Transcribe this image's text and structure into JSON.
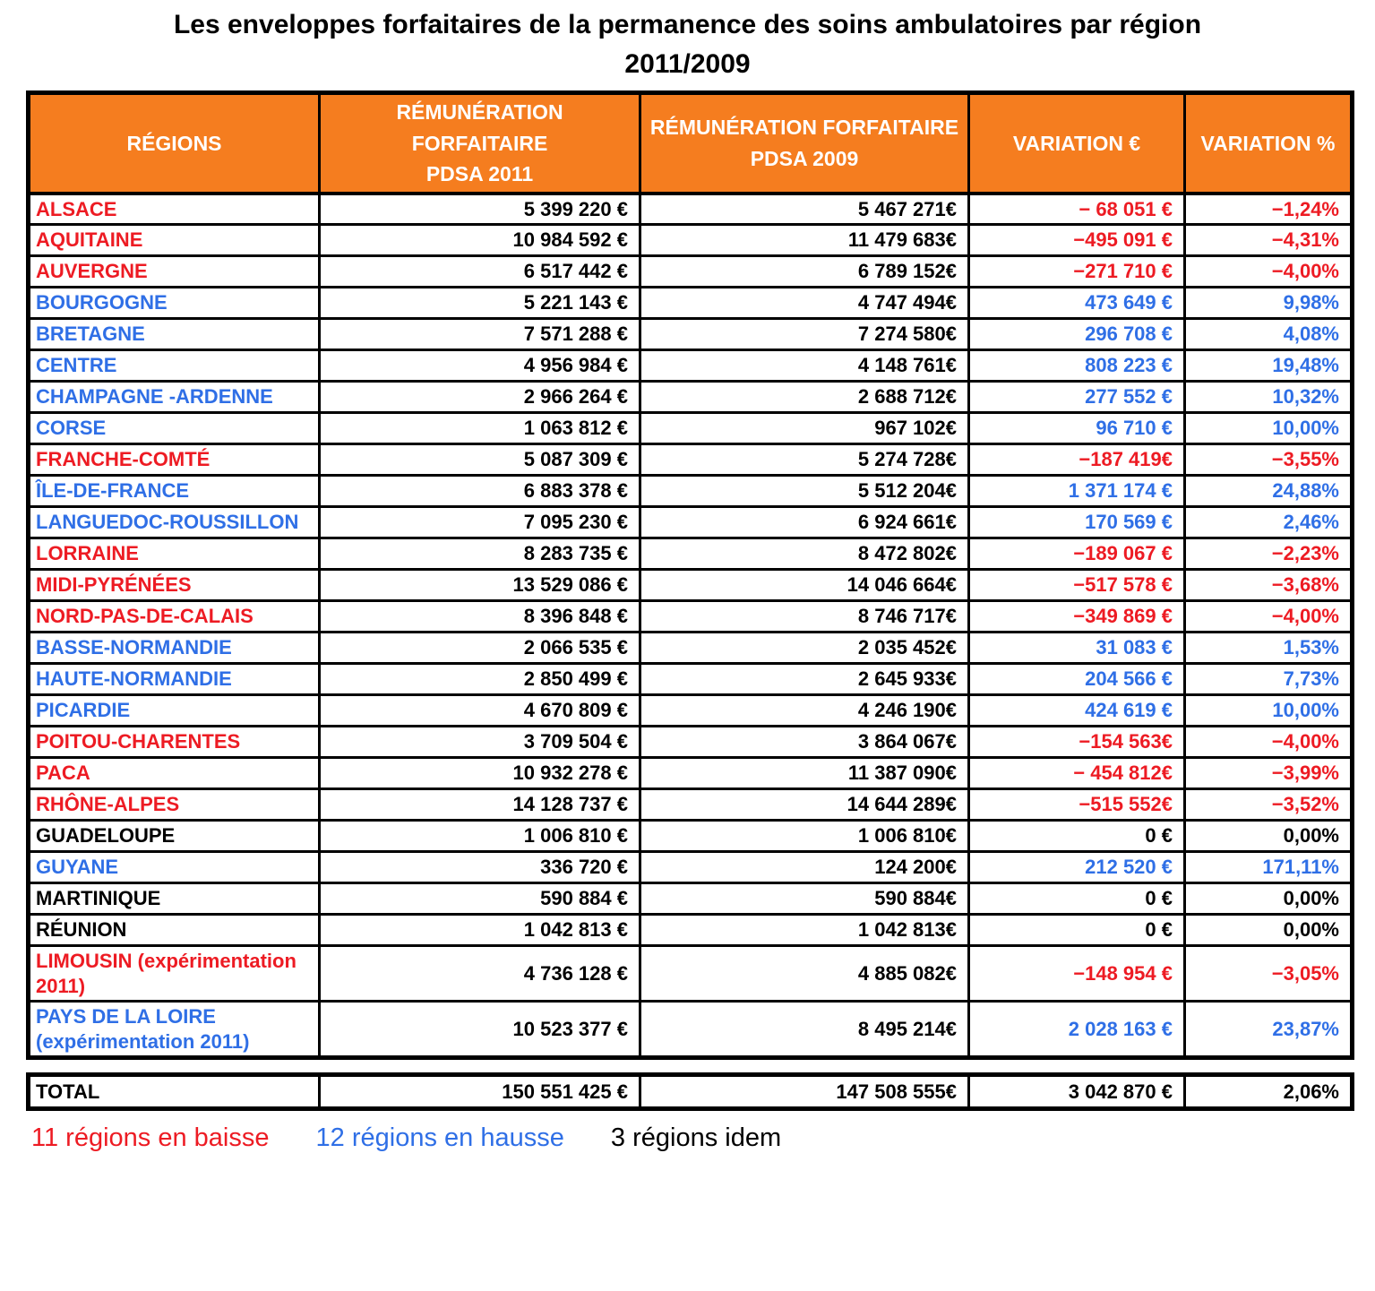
{
  "title": {
    "line1": "Les enveloppes forfaitaires de la permanence des soins ambulatoires par région",
    "line2": "2011/2009"
  },
  "colors": {
    "header_bg": "#F57D1F",
    "header_text": "#FFFFFF",
    "down": "#ED1B23",
    "up": "#2F6FE6",
    "flat": "#000000",
    "border": "#000000"
  },
  "table": {
    "columns": [
      {
        "line1": "RÉGIONS",
        "line2": ""
      },
      {
        "line1": "RÉMUNÉRATION FORFAITAIRE",
        "line2": "PDSA 2011"
      },
      {
        "line1": "RÉMUNÉRATION FORFAITAIRE",
        "line2": "PDSA 2009"
      },
      {
        "line1": "VARIATION €",
        "line2": ""
      },
      {
        "line1": "VARIATION %",
        "line2": ""
      }
    ],
    "rows": [
      {
        "region": "ALSACE",
        "pdsa2011": "5 399 220 €",
        "pdsa2009": "5 467 271€",
        "variation_eur": "− 68 051 €",
        "variation_pct": "−1,24%",
        "trend": "down"
      },
      {
        "region": "AQUITAINE",
        "pdsa2011": "10 984 592 €",
        "pdsa2009": "11 479 683€",
        "variation_eur": "−495 091 €",
        "variation_pct": "−4,31%",
        "trend": "down"
      },
      {
        "region": "AUVERGNE",
        "pdsa2011": "6 517 442 €",
        "pdsa2009": "6 789 152€",
        "variation_eur": "−271 710 €",
        "variation_pct": "−4,00%",
        "trend": "down"
      },
      {
        "region": "BOURGOGNE",
        "pdsa2011": "5 221 143 €",
        "pdsa2009": "4 747 494€",
        "variation_eur": "473 649 €",
        "variation_pct": "9,98%",
        "trend": "up"
      },
      {
        "region": "BRETAGNE",
        "pdsa2011": "7 571 288 €",
        "pdsa2009": "7 274 580€",
        "variation_eur": "296 708 €",
        "variation_pct": "4,08%",
        "trend": "up"
      },
      {
        "region": "CENTRE",
        "pdsa2011": "4 956 984 €",
        "pdsa2009": "4 148 761€",
        "variation_eur": "808 223 €",
        "variation_pct": "19,48%",
        "trend": "up"
      },
      {
        "region": "CHAMPAGNE -ARDENNE",
        "pdsa2011": "2 966 264 €",
        "pdsa2009": "2 688 712€",
        "variation_eur": "277 552 €",
        "variation_pct": "10,32%",
        "trend": "up"
      },
      {
        "region": "CORSE",
        "pdsa2011": "1 063 812 €",
        "pdsa2009": "967 102€",
        "variation_eur": "96 710 €",
        "variation_pct": "10,00%",
        "trend": "up"
      },
      {
        "region": "FRANCHE-COMTÉ",
        "pdsa2011": "5 087 309 €",
        "pdsa2009": "5 274 728€",
        "variation_eur": "−187 419€",
        "variation_pct": "−3,55%",
        "trend": "down"
      },
      {
        "region": "ÎLE-DE-FRANCE",
        "pdsa2011": "6 883 378 €",
        "pdsa2009": "5 512 204€",
        "variation_eur": "1 371 174 €",
        "variation_pct": "24,88%",
        "trend": "up"
      },
      {
        "region": "LANGUEDOC-ROUSSILLON",
        "pdsa2011": "7 095 230 €",
        "pdsa2009": "6 924 661€",
        "variation_eur": "170 569 €",
        "variation_pct": "2,46%",
        "trend": "up"
      },
      {
        "region": "LORRAINE",
        "pdsa2011": "8 283 735 €",
        "pdsa2009": "8 472 802€",
        "variation_eur": "−189 067 €",
        "variation_pct": "−2,23%",
        "trend": "down"
      },
      {
        "region": "MIDI-PYRÉNÉES",
        "pdsa2011": "13 529 086 €",
        "pdsa2009": "14 046 664€",
        "variation_eur": "−517 578 €",
        "variation_pct": "−3,68%",
        "trend": "down"
      },
      {
        "region": "NORD-PAS-DE-CALAIS",
        "pdsa2011": "8 396 848 €",
        "pdsa2009": "8 746 717€",
        "variation_eur": "−349 869 €",
        "variation_pct": "−4,00%",
        "trend": "down"
      },
      {
        "region": "BASSE-NORMANDIE",
        "pdsa2011": "2 066 535 €",
        "pdsa2009": "2 035 452€",
        "variation_eur": "31 083 €",
        "variation_pct": "1,53%",
        "trend": "up"
      },
      {
        "region": "HAUTE-NORMANDIE",
        "pdsa2011": "2 850 499 €",
        "pdsa2009": "2 645 933€",
        "variation_eur": "204 566 €",
        "variation_pct": "7,73%",
        "trend": "up"
      },
      {
        "region": "PICARDIE",
        "pdsa2011": "4 670 809 €",
        "pdsa2009": "4 246 190€",
        "variation_eur": "424 619 €",
        "variation_pct": "10,00%",
        "trend": "up"
      },
      {
        "region": "POITOU-CHARENTES",
        "pdsa2011": "3 709 504 €",
        "pdsa2009": "3 864 067€",
        "variation_eur": "−154 563€",
        "variation_pct": "−4,00%",
        "trend": "down"
      },
      {
        "region": "PACA",
        "pdsa2011": "10 932 278 €",
        "pdsa2009": "11 387 090€",
        "variation_eur": "− 454 812€",
        "variation_pct": "−3,99%",
        "trend": "down"
      },
      {
        "region": "RHÔNE-ALPES",
        "pdsa2011": "14 128 737 €",
        "pdsa2009": "14 644 289€",
        "variation_eur": "−515 552€",
        "variation_pct": "−3,52%",
        "trend": "down"
      },
      {
        "region": "GUADELOUPE",
        "pdsa2011": "1 006 810 €",
        "pdsa2009": "1 006 810€",
        "variation_eur": "0 €",
        "variation_pct": "0,00%",
        "trend": "flat"
      },
      {
        "region": "GUYANE",
        "pdsa2011": "336 720 €",
        "pdsa2009": "124 200€",
        "variation_eur": "212 520 €",
        "variation_pct": "171,11%",
        "trend": "up"
      },
      {
        "region": "MARTINIQUE",
        "pdsa2011": "590 884 €",
        "pdsa2009": "590 884€",
        "variation_eur": "0 €",
        "variation_pct": "0,00%",
        "trend": "flat"
      },
      {
        "region": "RÉUNION",
        "pdsa2011": "1 042 813 €",
        "pdsa2009": "1 042 813€",
        "variation_eur": "0 €",
        "variation_pct": "0,00%",
        "trend": "flat"
      },
      {
        "region": "LIMOUSIN (expérimentation 2011)",
        "pdsa2011": "4 736 128 €",
        "pdsa2009": "4 885 082€",
        "variation_eur": "−148 954 €",
        "variation_pct": "−3,05%",
        "trend": "down"
      },
      {
        "region": "PAYS DE LA LOIRE (expérimentation 2011)",
        "pdsa2011": "10 523 377 €",
        "pdsa2009": "8 495 214€",
        "variation_eur": "2 028 163 €",
        "variation_pct": "23,87%",
        "trend": "up"
      }
    ],
    "total": {
      "region": "TOTAL",
      "pdsa2011": "150 551 425 €",
      "pdsa2009": "147 508 555€",
      "variation_eur": "3 042 870 €",
      "variation_pct": "2,06%"
    }
  },
  "legend": [
    {
      "text": "11 régions en baisse",
      "trend": "down"
    },
    {
      "text": "12 régions en hausse",
      "trend": "up"
    },
    {
      "text": "3 régions idem",
      "trend": "flat"
    }
  ]
}
